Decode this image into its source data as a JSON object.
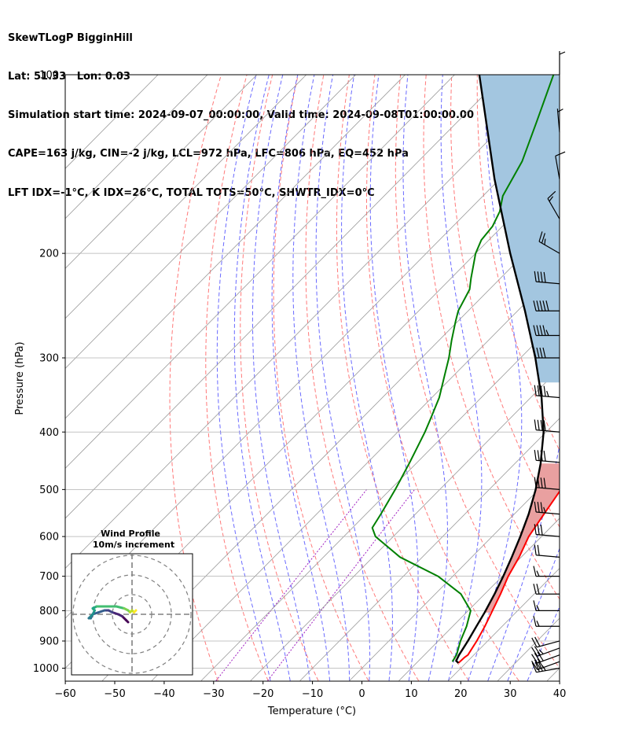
{
  "header": {
    "line1": "SkewTLogP BigginHill",
    "line2": "Lat: 51.33   Lon: 0.03",
    "line3": "Simulation start time: 2024-09-07_00:00:00, Valid time: 2024-09-08T01:00:00.00",
    "line4": "CAPE=163 j/kg, CIN=-2 j/kg, LCL=972 hPa, LFC=806 hPa, EQ=452 hPa",
    "line5": "LFT IDX=-1°C, K IDX=26°C, TOTAL TOTS=50°C, SHWTR_IDX=0°C"
  },
  "chart_data": {
    "type": "line",
    "subtype": "skew-t-log-p",
    "xlabel": "Temperature (°C)",
    "ylabel": "Pressure (hPa)",
    "xlim": [
      -60,
      40
    ],
    "ylim": [
      1050,
      100
    ],
    "y_scale": "log",
    "x_ticks": [
      -60,
      -50,
      -40,
      -30,
      -20,
      -10,
      0,
      10,
      20,
      30,
      40
    ],
    "x_tick_labels": [
      "−60",
      "−50",
      "−40",
      "−30",
      "−20",
      "−10",
      "0",
      "10",
      "20",
      "30",
      "40"
    ],
    "y_ticks": [
      1000,
      900,
      800,
      700,
      600,
      500,
      400,
      300,
      200,
      100
    ],
    "grid": true,
    "colors": {
      "temperature": "#ff0000",
      "dewpoint": "#008000",
      "parcel": "#000000",
      "cape_fill": "#e9a0a0",
      "cin_fill": "#a3c6e0",
      "dry_adiabat": "#ff6a6a",
      "moist_adiabat": "#5a5aff",
      "mixing_ratio": "#a020c0",
      "isotherm": "#999999"
    },
    "series": [
      {
        "role": "temperature",
        "pressure": [
          980,
          960,
          950,
          930,
          900,
          850,
          800,
          750,
          700,
          650,
          600,
          550,
          500,
          450,
          400,
          350,
          300,
          280,
          260,
          250,
          230,
          210,
          200,
          180,
          160,
          140,
          120,
          100
        ],
        "values": [
          18.5,
          18.6,
          18.8,
          18.4,
          17.8,
          16.5,
          14.9,
          13.2,
          11.2,
          9.6,
          7.4,
          6.0,
          4.5,
          3.3,
          0.7,
          -4.0,
          -9.8,
          -13.0,
          -16.7,
          -18.8,
          -21.6,
          -23.4,
          -23.3,
          -27.5,
          -34.0,
          -40.0,
          -47.0,
          -56.0
        ]
      },
      {
        "role": "dewpoint",
        "pressure": [
          975,
          950,
          900,
          850,
          800,
          750,
          700,
          650,
          600,
          580,
          550,
          500,
          450,
          400,
          380,
          350,
          320,
          300,
          280,
          260,
          250,
          230,
          220,
          200,
          190,
          180,
          170,
          160,
          140,
          120,
          100
        ],
        "values": [
          17.0,
          16.5,
          14.5,
          12.8,
          10.5,
          5.2,
          -3.0,
          -14.5,
          -23.6,
          -26.0,
          -27.0,
          -29.0,
          -31.5,
          -34.5,
          -36.0,
          -38.5,
          -42.0,
          -44.5,
          -47.5,
          -50.5,
          -52.0,
          -54.0,
          -56.0,
          -60.0,
          -61.5,
          -62.0,
          -63.5,
          -66.0,
          -69.0,
          -74.0,
          -80.0
        ]
      },
      {
        "role": "parcel",
        "pressure": [
          980,
          972,
          950,
          900,
          850,
          806,
          750,
          700,
          650,
          600,
          550,
          500,
          452,
          400,
          350,
          300,
          250,
          200,
          150,
          100
        ],
        "values": [
          18.5,
          17.6,
          17.0,
          16.0,
          14.8,
          13.7,
          12.0,
          10.2,
          8.1,
          5.7,
          2.9,
          -0.6,
          -4.8,
          -10.5,
          -17.8,
          -27.0,
          -38.5,
          -53.0,
          -71.0,
          -95.0
        ]
      }
    ],
    "wind_barbs": {
      "units": "kt",
      "pressure": [
        1000,
        975,
        950,
        925,
        900,
        850,
        800,
        750,
        700,
        650,
        600,
        550,
        500,
        450,
        400,
        350,
        300,
        275,
        250,
        225,
        200,
        175,
        150,
        125,
        100
      ],
      "speed": [
        35,
        30,
        30,
        25,
        20,
        15,
        15,
        20,
        15,
        20,
        30,
        35,
        40,
        40,
        40,
        45,
        40,
        45,
        50,
        40,
        25,
        15,
        10,
        5,
        5
      ],
      "direction": [
        260,
        250,
        250,
        250,
        255,
        270,
        270,
        270,
        270,
        275,
        275,
        275,
        275,
        275,
        275,
        275,
        270,
        270,
        270,
        275,
        300,
        330,
        350,
        355,
        0
      ]
    },
    "hodograph": {
      "title": "Wind Profile",
      "subtitle": "10m/s increment",
      "rings": [
        10,
        20,
        30
      ],
      "u": [
        -2,
        -3,
        -5,
        -7,
        -10,
        -12,
        -14,
        -17,
        -20,
        -21,
        -22,
        -21,
        -20,
        -19,
        -20,
        -18,
        -13,
        -8,
        -4,
        -2,
        -1,
        0,
        1,
        1,
        2
      ],
      "v": [
        -4,
        -3,
        -1,
        0,
        1,
        2,
        2,
        1,
        0,
        -2,
        -2,
        -1,
        0,
        2,
        3,
        4,
        4,
        4,
        3,
        2,
        1,
        2,
        1,
        1,
        2
      ]
    }
  }
}
